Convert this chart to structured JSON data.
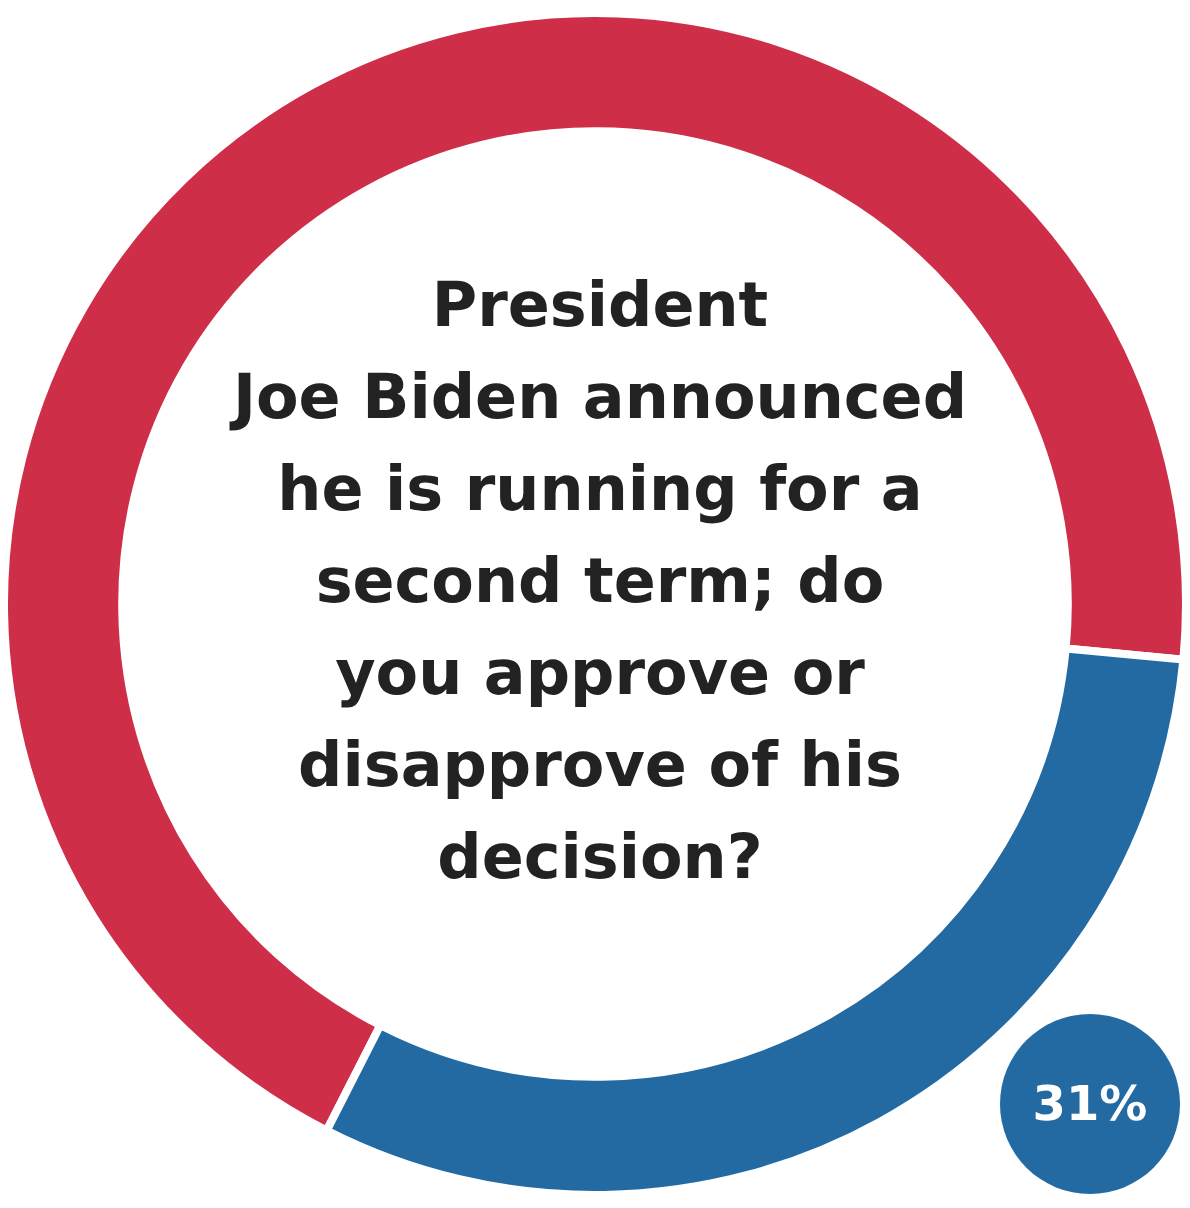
{
  "chart_data": {
    "type": "donut",
    "title": "President\nJoe Biden announced\nhe is running for a\nsecond term; do\nyou approve or\ndisapprove of his\ndecision?",
    "categories": [
      null,
      null
    ],
    "values": [
      69,
      31
    ],
    "colors": [
      "#cf2e48",
      "#236aa3"
    ],
    "value_labels": [
      null,
      "31%"
    ],
    "legend": false
  }
}
